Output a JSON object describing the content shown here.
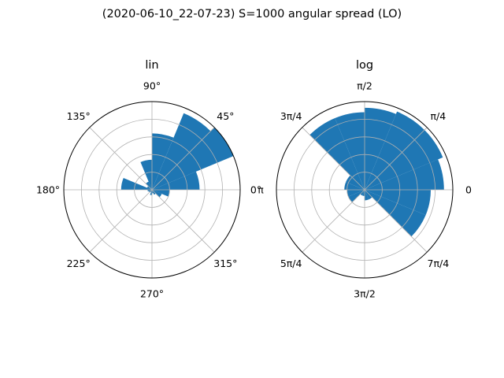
{
  "figure": {
    "suptitle": "(2020-06-10_22-07-23) S=1000 angular spread (LO)",
    "bar_color": "#1f77b4",
    "grid_color": "#b0b0b0"
  },
  "chart_data": [
    {
      "type": "polar-bar",
      "title": "lin",
      "radial_scale": "linear",
      "rlim": [
        0,
        1
      ],
      "rticks": [
        0.2,
        0.4,
        0.6,
        0.8
      ],
      "rticklabels_visible": false,
      "angle_ticks_deg": [
        0,
        45,
        90,
        135,
        180,
        225,
        270,
        315
      ],
      "angle_ticklabels": [
        "0°",
        "45°",
        "90°",
        "135°",
        "180°",
        "225°",
        "270°",
        "315°"
      ],
      "bin_width_deg": 22.5,
      "bars": [
        {
          "start_deg": 0,
          "value": 0.54
        },
        {
          "start_deg": 22.5,
          "value": 1.0
        },
        {
          "start_deg": 45,
          "value": 0.94
        },
        {
          "start_deg": 67.5,
          "value": 0.64
        },
        {
          "start_deg": 90,
          "value": 0.34
        },
        {
          "start_deg": 112.5,
          "value": 0.1
        },
        {
          "start_deg": 135,
          "value": 0.06
        },
        {
          "start_deg": 157.5,
          "value": 0.35
        },
        {
          "start_deg": 180,
          "value": 0.05
        },
        {
          "start_deg": 202.5,
          "value": 0.04
        },
        {
          "start_deg": 225,
          "value": 0.03
        },
        {
          "start_deg": 247.5,
          "value": 0.06
        },
        {
          "start_deg": 270,
          "value": 0.04
        },
        {
          "start_deg": 292.5,
          "value": 0.06
        },
        {
          "start_deg": 315,
          "value": 0.12
        },
        {
          "start_deg": 337.5,
          "value": 0.2
        }
      ]
    },
    {
      "type": "polar-bar",
      "title": "log",
      "radial_scale": "log",
      "rlim": [
        0,
        1
      ],
      "rticks": [
        0.2,
        0.4,
        0.6,
        0.8
      ],
      "rticklabels_visible": false,
      "angle_ticks_deg": [
        0,
        45,
        90,
        135,
        180,
        225,
        270,
        315
      ],
      "angle_ticklabels": [
        "0",
        "π/4",
        "π/2",
        "3π/4",
        "π",
        "5π/4",
        "3π/2",
        "7π/4"
      ],
      "bin_width_deg": 22.5,
      "bars": [
        {
          "start_deg": 0,
          "value": 0.9
        },
        {
          "start_deg": 22.5,
          "value": 0.96
        },
        {
          "start_deg": 45,
          "value": 0.96
        },
        {
          "start_deg": 67.5,
          "value": 0.93
        },
        {
          "start_deg": 90,
          "value": 0.88
        },
        {
          "start_deg": 112.5,
          "value": 0.88
        },
        {
          "start_deg": 135,
          "value": 0.23
        },
        {
          "start_deg": 157.5,
          "value": 0.23
        },
        {
          "start_deg": 180,
          "value": 0.2
        },
        {
          "start_deg": 202.5,
          "value": 0.2
        },
        {
          "start_deg": 225,
          "value": 0.07
        },
        {
          "start_deg": 247.5,
          "value": 0.07
        },
        {
          "start_deg": 270,
          "value": 0.12
        },
        {
          "start_deg": 292.5,
          "value": 0.12
        },
        {
          "start_deg": 315,
          "value": 0.75
        },
        {
          "start_deg": 337.5,
          "value": 0.75
        }
      ]
    }
  ]
}
